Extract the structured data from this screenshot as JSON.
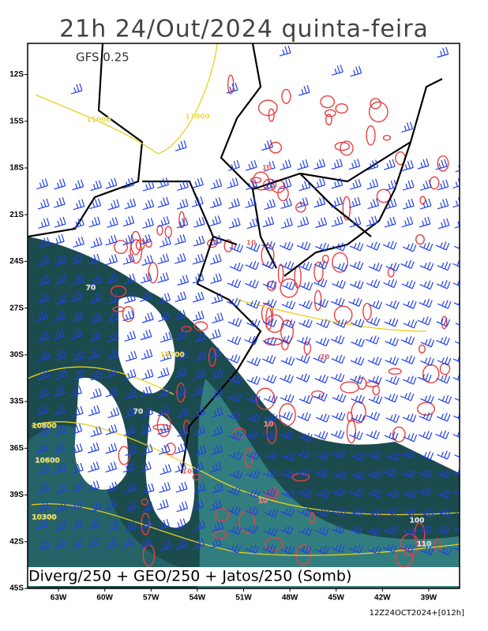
{
  "header": {
    "title": "21h 24/Out/2024 quinta-feira"
  },
  "map": {
    "model": "GFS 0.25",
    "caption": "Diverg/250 + GEO/250 + Jatos/250 (Somb)",
    "run_label": "12Z24OCT2024+[012h]",
    "ylim": [
      -10,
      -45
    ],
    "yticks": [
      {
        "value": -12,
        "label": "12S"
      },
      {
        "value": -15,
        "label": "15S"
      },
      {
        "value": -18,
        "label": "18S"
      },
      {
        "value": -21,
        "label": "21S"
      },
      {
        "value": -24,
        "label": "24S"
      },
      {
        "value": -27,
        "label": "27S"
      },
      {
        "value": -30,
        "label": "30S"
      },
      {
        "value": -33,
        "label": "33S"
      },
      {
        "value": -36,
        "label": "36S"
      },
      {
        "value": -39,
        "label": "39S"
      },
      {
        "value": -42,
        "label": "42S"
      },
      {
        "value": -45,
        "label": "45S"
      }
    ],
    "xlim": [
      -65,
      -37
    ],
    "xticks": [
      {
        "value": -63,
        "label": "63W"
      },
      {
        "value": -60,
        "label": "60W"
      },
      {
        "value": -57,
        "label": "57W"
      },
      {
        "value": -54,
        "label": "54W"
      },
      {
        "value": -51,
        "label": "51W"
      },
      {
        "value": -48,
        "label": "48W"
      },
      {
        "value": -45,
        "label": "45W"
      },
      {
        "value": -42,
        "label": "42W"
      },
      {
        "value": -39,
        "label": "39W"
      }
    ],
    "contour_labels": [
      "11000",
      "11000",
      "10",
      "10",
      "10",
      "10",
      "10",
      "20",
      "10700",
      "10800",
      "10600",
      "10300",
      "70",
      "70",
      "100",
      "110"
    ]
  }
}
